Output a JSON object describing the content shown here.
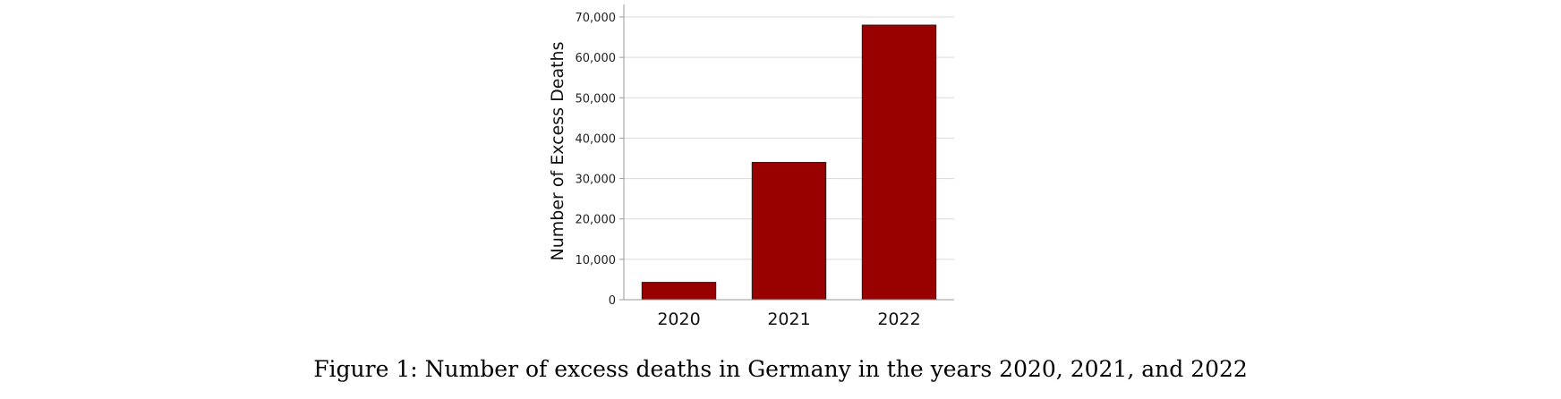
{
  "chart_data": {
    "type": "bar",
    "categories": [
      "2020",
      "2021",
      "2022"
    ],
    "values": [
      4300,
      34000,
      68000
    ],
    "title": "",
    "xlabel": "",
    "ylabel": "Number of Excess Deaths",
    "ylim": [
      0,
      70000
    ],
    "yticks": [
      0,
      10000,
      20000,
      30000,
      40000,
      50000,
      60000,
      70000
    ],
    "ytick_labels": [
      "0",
      "10,000",
      "20,000",
      "30,000",
      "40,000",
      "50,000",
      "60,000",
      "70,000"
    ],
    "grid": true,
    "legend": "none",
    "bar_color": "#990000",
    "bar_edge_color": "#222222",
    "grid_color": "#d9d9d9",
    "axis_color": "#9a9a9a"
  },
  "caption": "Figure 1: Number of excess deaths in Germany in the years 2020, 2021, and 2022"
}
